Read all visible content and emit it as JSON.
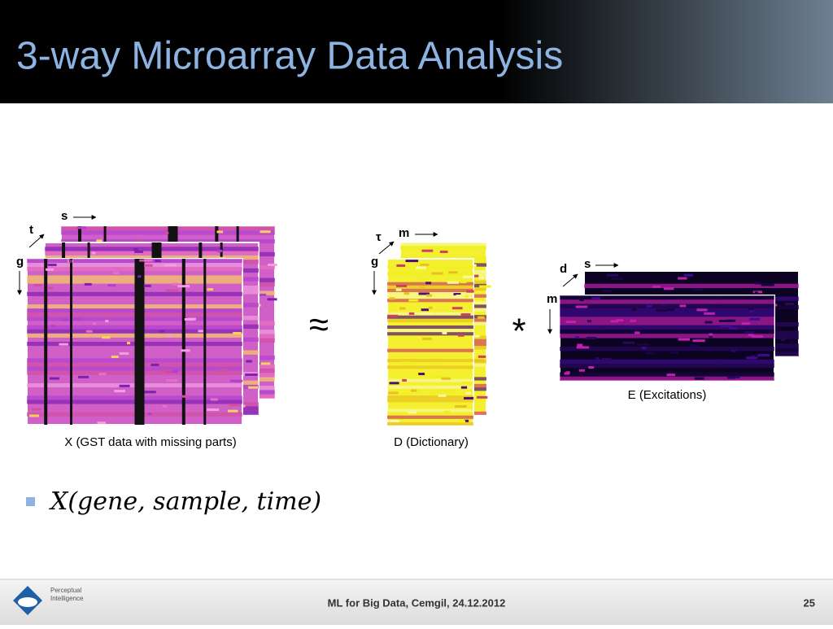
{
  "title": "3-way Microarray Data Analysis",
  "figure": {
    "x": {
      "caption": "X (GST data with missing parts)",
      "axes": [
        "s",
        "t",
        "g"
      ]
    },
    "d": {
      "caption": "D (Dictionary)",
      "axes": [
        "m",
        "τ",
        "g"
      ]
    },
    "e": {
      "caption": "E (Excitations)",
      "axes": [
        "s",
        "d",
        "m"
      ]
    },
    "approx": "≈",
    "times": "*"
  },
  "bullet": "X(gene, sample, time)",
  "footer": {
    "text": "ML for Big Data, Cemgil, 24.12.2012",
    "page": "25",
    "logo": [
      "Perceptual",
      "Intelligence"
    ]
  }
}
